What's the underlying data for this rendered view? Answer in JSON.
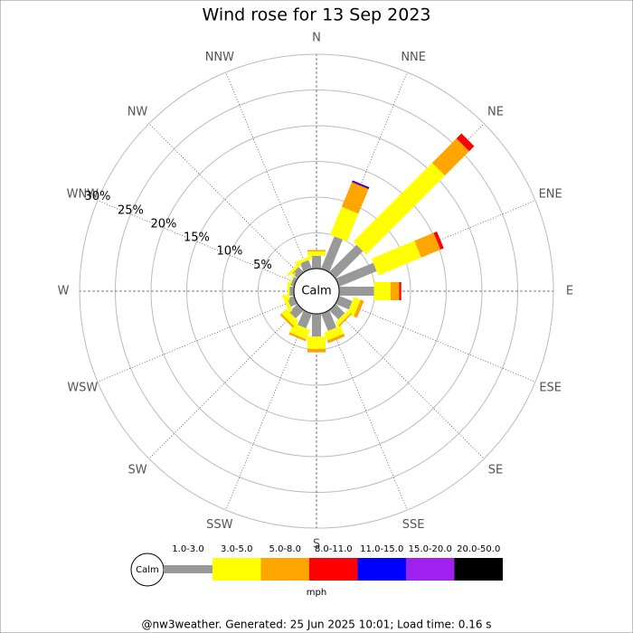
{
  "chart_data": {
    "type": "windrose",
    "title": "Wind rose for 13 Sep 2023",
    "categories": [
      "N",
      "NNE",
      "NE",
      "ENE",
      "E",
      "ESE",
      "SE",
      "SSE",
      "S",
      "SSW",
      "SW",
      "WSW",
      "W",
      "WNW",
      "NW",
      "NNW"
    ],
    "series": [
      {
        "name": "1.0-3.0",
        "color": "#999999",
        "values": [
          1.8,
          4.9,
          5.4,
          5.7,
          4.9,
          2.0,
          1.8,
          2.6,
          3.2,
          2.2,
          1.6,
          1.0,
          0.6,
          0.5,
          1.0,
          1.3
        ]
      },
      {
        "name": "3.0-5.0",
        "color": "#ffff00",
        "values": [
          0.6,
          4.2,
          15.6,
          6.5,
          2.3,
          1.0,
          0.6,
          1.2,
          1.7,
          1.4,
          0.9,
          0.5,
          0.3,
          0.2,
          0.4,
          0.4
        ]
      },
      {
        "name": "5.0-8.0",
        "color": "#ffa500",
        "values": [
          0.2,
          3.7,
          4.8,
          2.9,
          1.2,
          0.5,
          0.2,
          0.4,
          0.5,
          0.3,
          0.3,
          0,
          0,
          0,
          0,
          0
        ]
      },
      {
        "name": "8.0-11.0",
        "color": "#ff0000",
        "values": [
          0,
          0.1,
          1.0,
          0.5,
          0.3,
          0,
          0,
          0,
          0,
          0,
          0,
          0,
          0,
          0,
          0,
          0
        ]
      },
      {
        "name": "11.0-15.0",
        "color": "#0000ff",
        "values": [
          0,
          0.2,
          0,
          0,
          0,
          0,
          0,
          0,
          0,
          0,
          0,
          0,
          0,
          0,
          0,
          0
        ]
      },
      {
        "name": "15.0-20.0",
        "color": "#a020f0",
        "values": [
          0,
          0,
          0,
          0,
          0,
          0,
          0,
          0,
          0,
          0,
          0,
          0,
          0,
          0,
          0,
          0
        ]
      },
      {
        "name": "20.0-50.0",
        "color": "#000000",
        "values": [
          0,
          0,
          0,
          0,
          0,
          0,
          0,
          0,
          0,
          0,
          0,
          0,
          0,
          0,
          0,
          0
        ]
      }
    ],
    "ylim": [
      0,
      30
    ],
    "yticks": [
      {
        "value": 5,
        "label": "5%"
      },
      {
        "value": 10,
        "label": "10%"
      },
      {
        "value": 15,
        "label": "15%"
      },
      {
        "value": 20,
        "label": "20%"
      },
      {
        "value": 25,
        "label": "25%"
      },
      {
        "value": 30,
        "label": "30%"
      }
    ],
    "calm_label": "Calm",
    "unit": "mph"
  },
  "footer": "@nw3weather. Generated: 25 Jun 2025 10:01; Load time: 0.16 s"
}
